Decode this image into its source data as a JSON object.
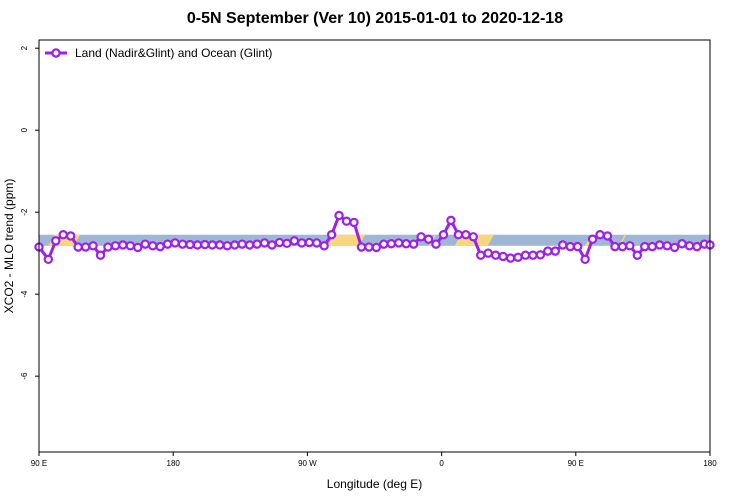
{
  "chart_data": {
    "type": "line",
    "title": "0-5N September (Ver 10)   2015-01-01 to 2020-12-18",
    "xlabel": "Longitude (deg E)",
    "ylabel": "XCO2 - MLO trend (ppm)",
    "xlim": [
      90,
      450
    ],
    "ylim": [
      -7.85,
      2.2
    ],
    "xticks": [
      {
        "value": 90,
        "label": "90 E"
      },
      {
        "value": 162,
        "label": "180"
      },
      {
        "value": 234,
        "label": "90 W"
      },
      {
        "value": 306,
        "label": "0"
      },
      {
        "value": 378,
        "label": "90 E"
      },
      {
        "value": 450,
        "label": "180"
      }
    ],
    "yticks": [
      {
        "value": 2,
        "label": "2"
      },
      {
        "value": 0,
        "label": "0"
      },
      {
        "value": -2,
        "label": "-2"
      },
      {
        "value": -4,
        "label": "-4"
      },
      {
        "value": -6,
        "label": "-6"
      }
    ],
    "legend": "top-left",
    "grid": false,
    "band": {
      "y_range": [
        -2.82,
        -2.55
      ],
      "land_color": "#9fb7d4",
      "ocean_color": "#f8d77c",
      "ocean_segments": [
        [
          95,
          112
        ],
        [
          245,
          265
        ],
        [
          299,
          303
        ],
        [
          313,
          334
        ],
        [
          383,
          389
        ],
        [
          401,
          405
        ]
      ]
    },
    "series": [
      {
        "name": "Land (Nadir&Glint) and Ocean (Glint)",
        "color": "#9b21e8",
        "x": [
          90,
          95,
          99,
          103,
          107,
          111,
          115,
          119,
          123,
          127,
          131,
          135,
          139,
          143,
          147,
          151,
          155,
          159,
          163,
          167,
          171,
          175,
          179,
          183,
          187,
          191,
          195,
          199,
          203,
          207,
          211,
          215,
          219,
          223,
          227,
          231,
          235,
          239,
          243,
          247,
          251,
          255,
          259,
          263,
          267,
          271,
          275,
          279,
          283,
          287,
          291,
          295,
          299,
          303,
          307,
          311,
          315,
          319,
          323,
          327,
          331,
          335,
          339,
          343,
          347,
          351,
          355,
          359,
          363,
          367,
          371,
          375,
          379,
          383,
          387,
          391,
          395,
          399,
          403,
          407,
          411,
          415,
          419,
          423,
          427,
          431,
          435,
          439,
          443,
          447,
          450
        ],
        "y": [
          -2.85,
          -3.15,
          -2.7,
          -2.55,
          -2.58,
          -2.85,
          -2.85,
          -2.82,
          -3.05,
          -2.85,
          -2.82,
          -2.8,
          -2.82,
          -2.86,
          -2.78,
          -2.82,
          -2.84,
          -2.78,
          -2.75,
          -2.78,
          -2.79,
          -2.8,
          -2.79,
          -2.8,
          -2.8,
          -2.82,
          -2.8,
          -2.78,
          -2.8,
          -2.78,
          -2.75,
          -2.8,
          -2.74,
          -2.76,
          -2.7,
          -2.75,
          -2.74,
          -2.75,
          -2.82,
          -2.55,
          -2.08,
          -2.22,
          -2.25,
          -2.85,
          -2.85,
          -2.86,
          -2.78,
          -2.77,
          -2.75,
          -2.77,
          -2.78,
          -2.6,
          -2.66,
          -2.78,
          -2.55,
          -2.2,
          -2.55,
          -2.55,
          -2.6,
          -3.05,
          -3.0,
          -3.05,
          -3.08,
          -3.12,
          -3.1,
          -3.05,
          -3.05,
          -3.04,
          -2.95,
          -2.95,
          -2.8,
          -2.84,
          -2.84,
          -3.15,
          -2.66,
          -2.55,
          -2.58,
          -2.84,
          -2.84,
          -2.82,
          -3.05,
          -2.84,
          -2.84,
          -2.8,
          -2.82,
          -2.86,
          -2.77,
          -2.82,
          -2.84,
          -2.78,
          -2.8
        ]
      }
    ]
  }
}
